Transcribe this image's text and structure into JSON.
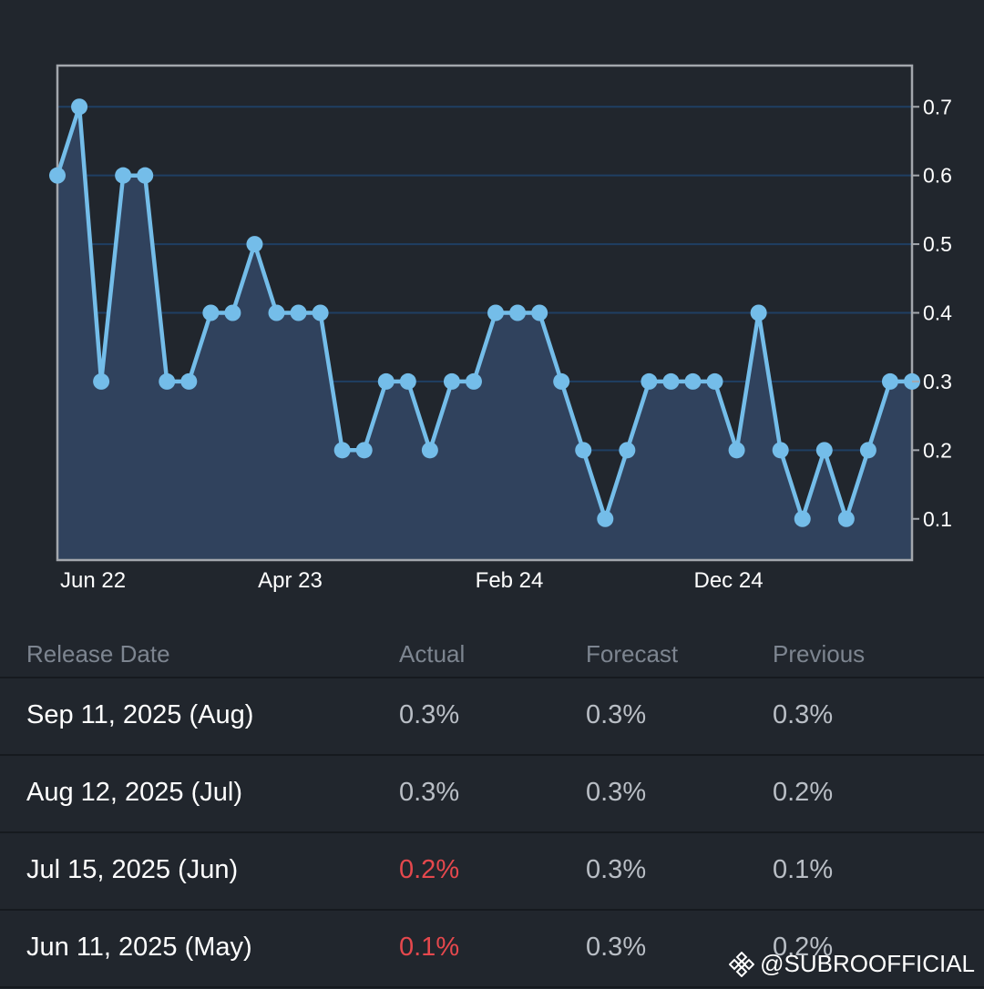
{
  "chart_data": {
    "type": "line",
    "x_ticks": [
      "Jun 22",
      "Apr 23",
      "Feb 24",
      "Dec 24"
    ],
    "y_ticks": [
      "0.1",
      "0.2",
      "0.3",
      "0.4",
      "0.5",
      "0.6",
      "0.7"
    ],
    "ylim": [
      0.04,
      0.76
    ],
    "grid": true,
    "y_axis_side": "right",
    "line_color": "#74bde9",
    "fill_color": "#30425d",
    "series": [
      {
        "values": [
          0.6,
          0.7,
          0.3,
          0.6,
          0.6,
          0.3,
          0.3,
          0.4,
          0.4,
          0.5,
          0.4,
          0.4,
          0.4,
          0.2,
          0.2,
          0.3,
          0.3,
          0.2,
          0.3,
          0.3,
          0.4,
          0.4,
          0.4,
          0.3,
          0.2,
          0.1,
          0.2,
          0.3,
          0.3,
          0.3,
          0.3,
          0.2,
          0.4,
          0.2,
          0.1,
          0.2,
          0.1,
          0.2,
          0.3,
          0.3
        ]
      }
    ]
  },
  "table": {
    "headers": [
      "Release Date",
      "Actual",
      "Forecast",
      "Previous"
    ],
    "rows": [
      {
        "date": "Sep 11, 2025 (Aug)",
        "actual": "0.3%",
        "forecast": "0.3%",
        "previous": "0.3%"
      },
      {
        "date": "Aug 12, 2025 (Jul)",
        "actual": "0.3%",
        "forecast": "0.3%",
        "previous": "0.2%"
      },
      {
        "date": "Jul 15, 2025 (Jun)",
        "actual": "0.2%",
        "forecast": "0.3%",
        "previous": "0.1%"
      },
      {
        "date": "Jun 11, 2025 (May)",
        "actual": "0.1%",
        "forecast": "0.3%",
        "previous": "0.2%"
      }
    ],
    "negative_color": "#e5484d"
  },
  "watermark": {
    "text": "@SUBROOFFICIAL",
    "icon": "binance-logo-icon"
  }
}
